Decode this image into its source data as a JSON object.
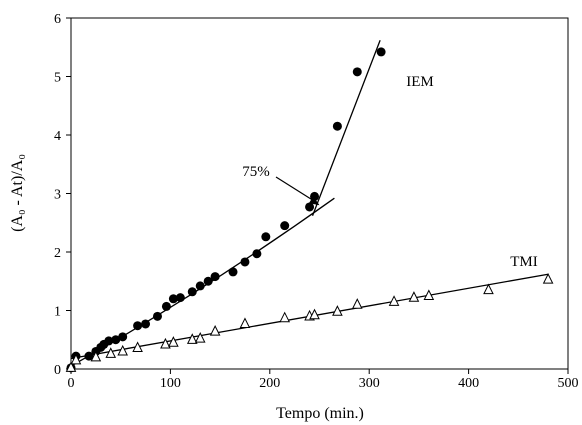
{
  "chart_data": {
    "type": "scatter",
    "xlabel": "Tempo (min.)",
    "ylabel": "(A₀ - At)/A₀",
    "xlim": [
      0,
      500
    ],
    "ylim": [
      0,
      6
    ],
    "xticks": [
      0,
      100,
      200,
      300,
      400,
      500
    ],
    "yticks": [
      0,
      1,
      2,
      3,
      4,
      5,
      6
    ],
    "grid": false,
    "series": [
      {
        "name": "IEM",
        "marker": "filled-circle",
        "color": "#000000",
        "points": [
          [
            0,
            0.02
          ],
          [
            5,
            0.22
          ],
          [
            18,
            0.22
          ],
          [
            25,
            0.3
          ],
          [
            30,
            0.37
          ],
          [
            33,
            0.42
          ],
          [
            38,
            0.48
          ],
          [
            45,
            0.5
          ],
          [
            52,
            0.55
          ],
          [
            67,
            0.74
          ],
          [
            75,
            0.77
          ],
          [
            87,
            0.9
          ],
          [
            96,
            1.07
          ],
          [
            103,
            1.2
          ],
          [
            110,
            1.22
          ],
          [
            122,
            1.32
          ],
          [
            130,
            1.42
          ],
          [
            138,
            1.5
          ],
          [
            145,
            1.58
          ],
          [
            163,
            1.66
          ],
          [
            175,
            1.83
          ],
          [
            187,
            1.97
          ],
          [
            196,
            2.26
          ],
          [
            215,
            2.45
          ],
          [
            240,
            2.77
          ],
          [
            245,
            2.95
          ],
          [
            268,
            4.15
          ],
          [
            288,
            5.08
          ],
          [
            312,
            5.42
          ]
        ],
        "fits": [
          {
            "x": [
              0,
              265
            ],
            "y": [
              0.05,
              2.92
            ],
            "curved": true
          },
          {
            "x": [
              243,
              311
            ],
            "y": [
              2.62,
              5.62
            ],
            "curved": false
          }
        ]
      },
      {
        "name": "TMI",
        "marker": "open-triangle",
        "color": "#000000",
        "points": [
          [
            0,
            0.02
          ],
          [
            5,
            0.15
          ],
          [
            25,
            0.2
          ],
          [
            40,
            0.26
          ],
          [
            52,
            0.3
          ],
          [
            67,
            0.36
          ],
          [
            95,
            0.42
          ],
          [
            103,
            0.45
          ],
          [
            122,
            0.5
          ],
          [
            130,
            0.52
          ],
          [
            145,
            0.64
          ],
          [
            175,
            0.77
          ],
          [
            215,
            0.87
          ],
          [
            240,
            0.9
          ],
          [
            245,
            0.92
          ],
          [
            268,
            0.98
          ],
          [
            288,
            1.1
          ],
          [
            325,
            1.15
          ],
          [
            345,
            1.22
          ],
          [
            360,
            1.25
          ],
          [
            420,
            1.35
          ],
          [
            480,
            1.53
          ]
        ],
        "fits": [
          {
            "x": [
              0,
              480
            ],
            "y": [
              0.18,
              1.62
            ],
            "curved": false
          }
        ]
      }
    ],
    "annotations": [
      {
        "text": "75%",
        "arrow_to": [
          250,
          2.8
        ]
      }
    ]
  }
}
